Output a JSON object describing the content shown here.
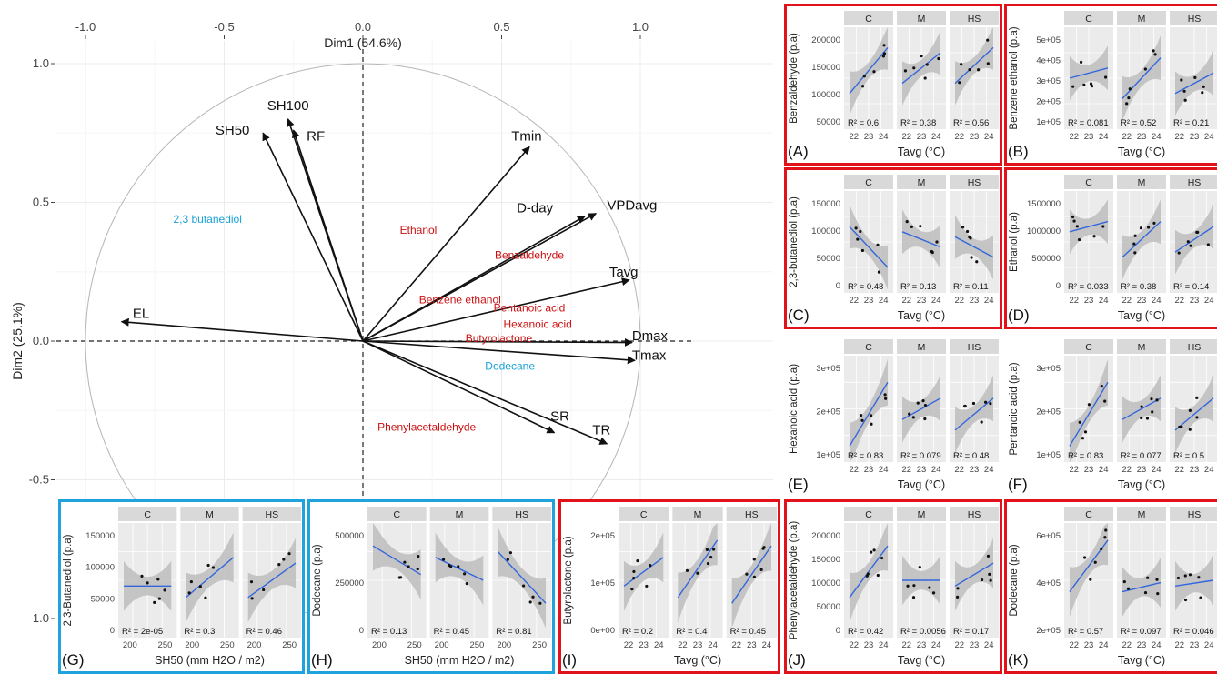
{
  "main_plot": {
    "xlabel": "Dim1 (54.6%)",
    "ylabel": "Dim2 (25.1%)",
    "xticks": [
      "-1.0",
      "-0.5",
      "0.0",
      "0.5",
      "1.0"
    ],
    "yticks": [
      "1.0",
      "0.5",
      "0.0",
      "-0.5",
      "-1.0"
    ]
  },
  "chart_data": [
    {
      "type": "scatter",
      "subtype": "pca-correlation-circle",
      "xlabel": "Dim1 (54.6%)",
      "ylabel": "Dim2 (25.1%)",
      "xlim": [
        -1.0,
        1.0
      ],
      "ylim": [
        -1.0,
        1.0
      ],
      "vectors": [
        {
          "label": "SH100",
          "x": -0.27,
          "y": 0.8
        },
        {
          "label": "SH50",
          "x": -0.36,
          "y": 0.75
        },
        {
          "label": "RF",
          "x": -0.25,
          "y": 0.76
        },
        {
          "label": "Tmin",
          "x": 0.6,
          "y": 0.7
        },
        {
          "label": "D-day",
          "x": 0.8,
          "y": 0.45
        },
        {
          "label": "VPDavg",
          "x": 0.84,
          "y": 0.46
        },
        {
          "label": "Tavg",
          "x": 0.96,
          "y": 0.22
        },
        {
          "label": "EL",
          "x": -0.87,
          "y": 0.07
        },
        {
          "label": "Dmax",
          "x": 0.97,
          "y": -0.005
        },
        {
          "label": "Tmax",
          "x": 0.98,
          "y": -0.07
        },
        {
          "label": "SR",
          "x": 0.69,
          "y": -0.33
        },
        {
          "label": "TR",
          "x": 0.88,
          "y": -0.37
        }
      ],
      "supplementary_red": [
        {
          "label": "Ethanol",
          "x": 0.2,
          "y": 0.4
        },
        {
          "label": "Benzaldehyde",
          "x": 0.6,
          "y": 0.31
        },
        {
          "label": "Benzene  ethanol",
          "x": 0.35,
          "y": 0.15
        },
        {
          "label": "Pentanoic acid",
          "x": 0.6,
          "y": 0.12
        },
        {
          "label": "Hexanoic acid",
          "x": 0.63,
          "y": 0.06
        },
        {
          "label": "Butyrolactone",
          "x": 0.49,
          "y": 0.01
        },
        {
          "label": "Phenylacetaldehyde",
          "x": 0.23,
          "y": -0.31
        }
      ],
      "supplementary_blue": [
        {
          "label": "2,3 butanediol",
          "x": -0.56,
          "y": 0.44
        },
        {
          "label": "Dodecane",
          "x": 0.53,
          "y": -0.09
        }
      ]
    },
    {
      "type": "scatter",
      "panel": "(A)",
      "ylabel": "Benzaldehyde (p.a)",
      "xlabel": "Tavg (°C)",
      "facets": [
        "C",
        "M",
        "HS"
      ],
      "r2": [
        "R² = 0.6",
        "R² = 0.38",
        "R² = 0.56"
      ],
      "yticks": [
        "200000",
        "150000",
        "100000",
        "50000"
      ],
      "xticks": [
        "22",
        "23",
        "24"
      ]
    },
    {
      "type": "scatter",
      "panel": "(B)",
      "ylabel": "Benzene ethanol (p.a)",
      "xlabel": "Tavg (°C)",
      "facets": [
        "C",
        "M",
        "HS"
      ],
      "r2": [
        "R² = 0.081",
        "R² = 0.52",
        "R² = 0.21"
      ],
      "yticks": [
        "5e+05",
        "4e+05",
        "3e+05",
        "2e+05",
        "1e+05"
      ],
      "xticks": [
        "22",
        "23",
        "24"
      ]
    },
    {
      "type": "scatter",
      "panel": "(C)",
      "ylabel": "2,3-butanediol (p.a)",
      "xlabel": "Tavg (°C)",
      "facets": [
        "C",
        "M",
        "HS"
      ],
      "r2": [
        "R² = 0.48",
        "R² = 0.13",
        "R² = 0.11"
      ],
      "yticks": [
        "150000",
        "100000",
        "50000",
        "0"
      ],
      "xticks": [
        "22",
        "23",
        "24"
      ]
    },
    {
      "type": "scatter",
      "panel": "(D)",
      "ylabel": "Ethanol (p.a)",
      "xlabel": "Tavg (°C)",
      "facets": [
        "C",
        "M",
        "HS"
      ],
      "r2": [
        "R² = 0.033",
        "R² = 0.38",
        "R² = 0.14"
      ],
      "yticks": [
        "1500000",
        "1000000",
        "500000",
        "0"
      ],
      "xticks": [
        "22",
        "23",
        "24"
      ]
    },
    {
      "type": "scatter",
      "panel": "(E)",
      "ylabel": "Hexanoic acid (p.a)",
      "xlabel": "Tavg (°C)",
      "facets": [
        "C",
        "M",
        "HS"
      ],
      "r2": [
        "R² = 0.83",
        "R² = 0.079",
        "R² = 0.48"
      ],
      "yticks": [
        "3e+05",
        "2e+05",
        "1e+05"
      ],
      "xticks": [
        "22",
        "23",
        "24"
      ]
    },
    {
      "type": "scatter",
      "panel": "(F)",
      "ylabel": "Pentanoic acid (p.a)",
      "xlabel": "Tavg (°C)",
      "facets": [
        "C",
        "M",
        "HS"
      ],
      "r2": [
        "R² = 0.83",
        "R² = 0.077",
        "R² = 0.5"
      ],
      "yticks": [
        "3e+05",
        "2e+05",
        "1e+05"
      ],
      "xticks": [
        "22",
        "23",
        "24"
      ]
    },
    {
      "type": "scatter",
      "panel": "(G)",
      "ylabel": "2,3-Butanediol (p.a)",
      "xlabel": "SH50 (mm H2O / m2)",
      "facets": [
        "C",
        "M",
        "HS"
      ],
      "r2": [
        "R² = 2e-05",
        "R² = 0.3",
        "R² = 0.46"
      ],
      "yticks": [
        "150000",
        "100000",
        "50000",
        "0"
      ],
      "xticks": [
        "200",
        "250"
      ]
    },
    {
      "type": "scatter",
      "panel": "(H)",
      "ylabel": "Dodecane (p.a)",
      "xlabel": "SH50 (mm H2O / m2)",
      "facets": [
        "C",
        "M",
        "HS"
      ],
      "r2": [
        "R² = 0.13",
        "R² = 0.45",
        "R² = 0.81"
      ],
      "yticks": [
        "500000",
        "250000",
        "0"
      ],
      "xticks": [
        "200",
        "250"
      ]
    },
    {
      "type": "scatter",
      "panel": "(I)",
      "ylabel": "Butyrolactone (p.a)",
      "xlabel": "Tavg (°C)",
      "facets": [
        "C",
        "M",
        "HS"
      ],
      "r2": [
        "R² = 0.2",
        "R² = 0.4",
        "R² = 0.45"
      ],
      "yticks": [
        "2e+05",
        "1e+05",
        "0e+00"
      ],
      "xticks": [
        "22",
        "23",
        "24"
      ]
    },
    {
      "type": "scatter",
      "panel": "(J)",
      "ylabel": "Phenylacetaldehyde (p.a)",
      "xlabel": "Tavg (°C)",
      "facets": [
        "C",
        "M",
        "HS"
      ],
      "r2": [
        "R² = 0.42",
        "R² = 0.0056",
        "R² = 0.17"
      ],
      "yticks": [
        "200000",
        "150000",
        "100000",
        "50000",
        "0"
      ],
      "xticks": [
        "22",
        "23",
        "24"
      ]
    },
    {
      "type": "scatter",
      "panel": "(K)",
      "ylabel": "Dodecane (p.a)",
      "xlabel": "Tavg (°C)",
      "facets": [
        "C",
        "M",
        "HS"
      ],
      "r2": [
        "R² = 0.57",
        "R² = 0.097",
        "R² = 0.046"
      ],
      "yticks": [
        "6e+05",
        "4e+05",
        "2e+05"
      ],
      "xticks": [
        "22",
        "23",
        "24"
      ]
    }
  ],
  "colors": {
    "red_frame": "#e2121b",
    "blue_frame": "#1ea3dc",
    "red_label": "#cc1111",
    "blue_label": "#1aa2d6",
    "fit_line": "#3366dd",
    "band": "#bdbdbd",
    "panel_bg": "#ebebeb",
    "strip_bg": "#d9d9d9"
  }
}
